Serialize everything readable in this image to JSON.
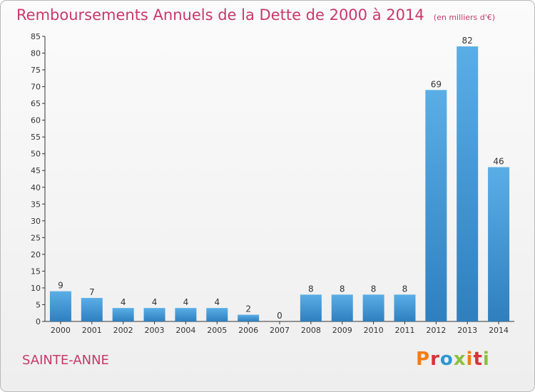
{
  "header": {
    "title": "Remboursements Annuels de la Dette de 2000 à 2014",
    "unit": "(en milliers d'€)"
  },
  "footer": {
    "place": "SAINTE-ANNE",
    "brand": "Proxiti",
    "brand_colors": [
      "#ef7d1a",
      "#d8323c",
      "#2d97d3",
      "#8cbf3f",
      "#ef7d1a",
      "#d8323c",
      "#8cbf3f"
    ]
  },
  "colors": {
    "bar_light": "#5aaee6",
    "bar_dark": "#2f7fbf",
    "title": "#c8386b",
    "axis": "#333333"
  },
  "chart_data": {
    "type": "bar",
    "categories": [
      "2000",
      "2001",
      "2002",
      "2003",
      "2004",
      "2005",
      "2006",
      "2007",
      "2008",
      "2009",
      "2010",
      "2011",
      "2012",
      "2013",
      "2014"
    ],
    "values": [
      9,
      7,
      4,
      4,
      4,
      4,
      2,
      0,
      8,
      8,
      8,
      8,
      69,
      82,
      46
    ],
    "ylim": [
      0,
      85
    ],
    "yticks": [
      0,
      5,
      10,
      15,
      20,
      25,
      30,
      35,
      40,
      45,
      50,
      55,
      60,
      65,
      70,
      75,
      80,
      85
    ],
    "grid": false,
    "legend": "none"
  }
}
